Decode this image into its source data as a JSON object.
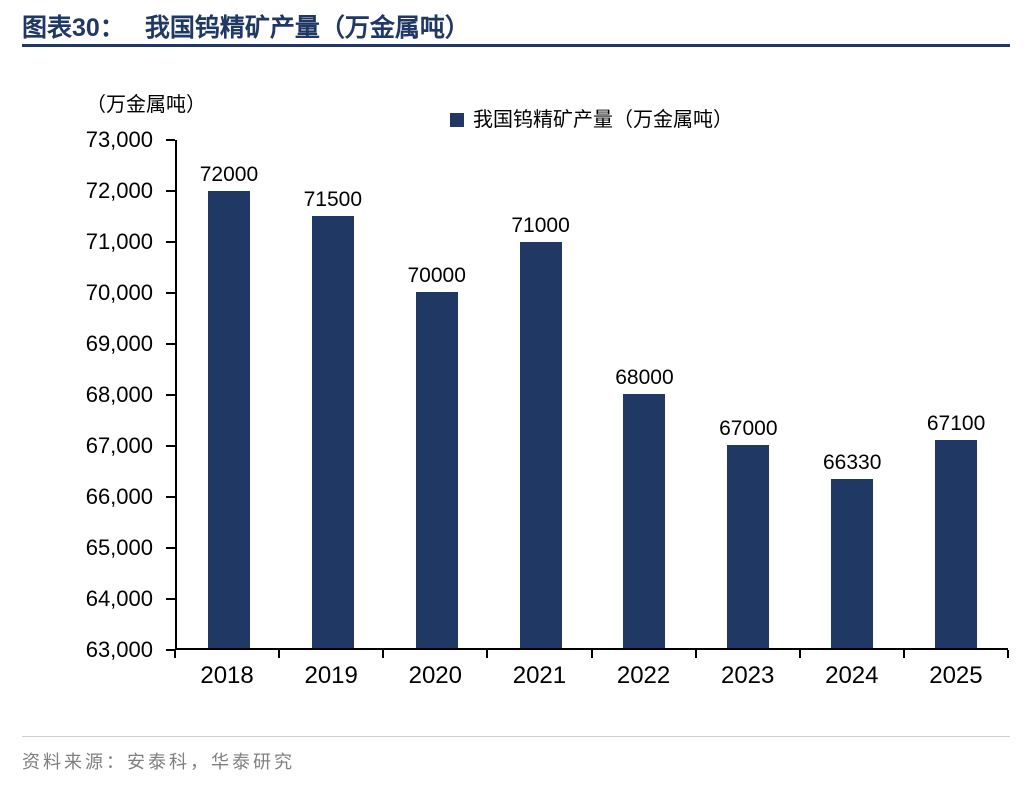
{
  "header": {
    "figure_label": "图表30：",
    "title": "我国钨精矿产量（万金属吨）"
  },
  "chart": {
    "bar_color": "#1F3864",
    "legend_label": "我国钨精矿产量（万金属吨）"
  },
  "chart_data": {
    "type": "bar",
    "title": "我国钨精矿产量（万金属吨）",
    "categories": [
      "2018",
      "2019",
      "2020",
      "2021",
      "2022",
      "2023",
      "2024",
      "2025"
    ],
    "values": [
      72000,
      71500,
      70000,
      71000,
      68000,
      67000,
      66330,
      67100
    ],
    "bar_value_labels": [
      "72000",
      "71500",
      "70000",
      "71000",
      "68000",
      "67000",
      "66330",
      "67100"
    ],
    "xlabel": "",
    "ylabel": "（万金属吨）",
    "ylim": [
      63000,
      73000
    ],
    "ytick_step": 1000,
    "yticks": [
      "63,000",
      "64,000",
      "65,000",
      "66,000",
      "67,000",
      "68,000",
      "69,000",
      "70,000",
      "71,000",
      "72,000",
      "73,000"
    ],
    "legend": [
      "我国钨精矿产量（万金属吨）"
    ],
    "legend_position": "top",
    "grid": false
  },
  "footer": {
    "source": "资料来源：安泰科，华泰研究"
  }
}
